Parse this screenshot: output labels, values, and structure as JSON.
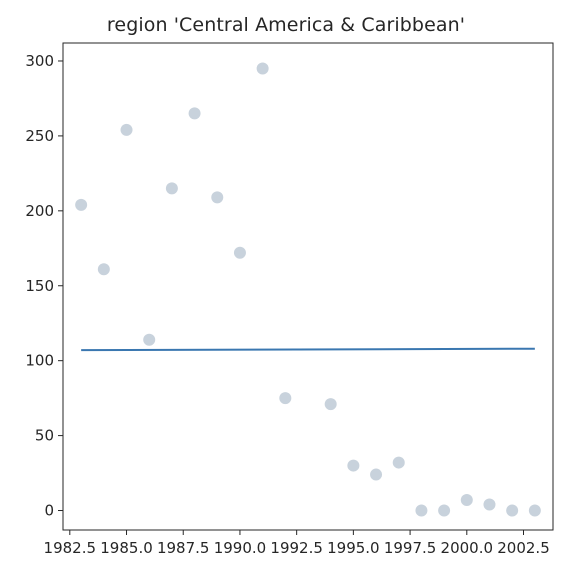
{
  "chart_data": {
    "type": "scatter",
    "title": "region 'Central America & Caribbean'",
    "xlabel": "",
    "ylabel": "",
    "xlim": [
      1982.2,
      2003.8
    ],
    "ylim": [
      -13,
      312
    ],
    "xticks": [
      1982.5,
      1985.0,
      1987.5,
      1990.0,
      1992.5,
      1995.0,
      1997.5,
      2000.0,
      2002.5
    ],
    "xtick_labels": [
      "1982.5",
      "1985.0",
      "1987.5",
      "1990.0",
      "1992.5",
      "1995.0",
      "1997.5",
      "2000.0",
      "2002.5"
    ],
    "yticks": [
      0,
      50,
      100,
      150,
      200,
      250,
      300
    ],
    "ytick_labels": [
      "0",
      "50",
      "100",
      "150",
      "200",
      "250",
      "300"
    ],
    "grid": false,
    "series": [
      {
        "kind": "scatter",
        "color": "#c8d2dc",
        "x": [
          1983,
          1984,
          1985,
          1986,
          1987,
          1988,
          1989,
          1990,
          1991,
          1992,
          1994,
          1995,
          1996,
          1997,
          1998,
          1999,
          2000,
          2001,
          2002,
          2003
        ],
        "y": [
          204,
          161,
          254,
          114,
          215,
          265,
          209,
          172,
          295,
          75,
          71,
          30,
          24,
          32,
          0,
          0,
          7,
          4,
          0,
          0
        ]
      },
      {
        "kind": "line",
        "color": "#3a77b0",
        "x": [
          1983,
          2003
        ],
        "y": [
          107,
          108
        ]
      }
    ]
  }
}
